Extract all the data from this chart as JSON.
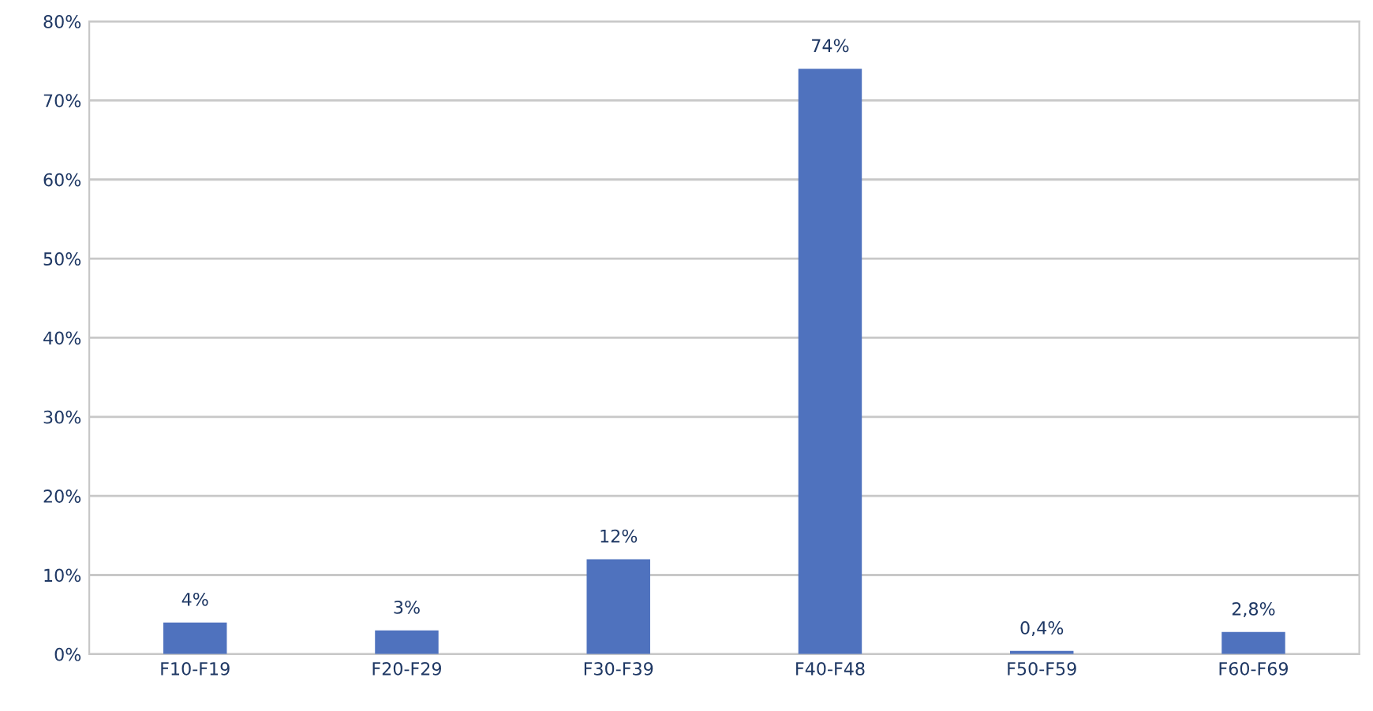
{
  "chart_data": {
    "type": "bar",
    "categories": [
      "F10-F19",
      "F20-F29",
      "F30-F39",
      "F40-F48",
      "F50-F59",
      "F60-F69"
    ],
    "values": [
      4,
      3,
      12,
      74,
      0.4,
      2.8
    ],
    "value_labels": [
      "4%",
      "3%",
      "12%",
      "74%",
      "0,4%",
      "2,8%"
    ],
    "color": "#4f72be",
    "ylim": [
      0,
      80
    ],
    "yticks": [
      {
        "value": 0,
        "label": "0%"
      },
      {
        "value": 10,
        "label": "10%"
      },
      {
        "value": 20,
        "label": "20%"
      },
      {
        "value": 30,
        "label": "30%"
      },
      {
        "value": 40,
        "label": "40%"
      },
      {
        "value": 50,
        "label": "50%"
      },
      {
        "value": 60,
        "label": "60%"
      },
      {
        "value": 70,
        "label": "70%"
      },
      {
        "value": 80,
        "label": "80%"
      }
    ],
    "grid": "y",
    "legend": false
  }
}
